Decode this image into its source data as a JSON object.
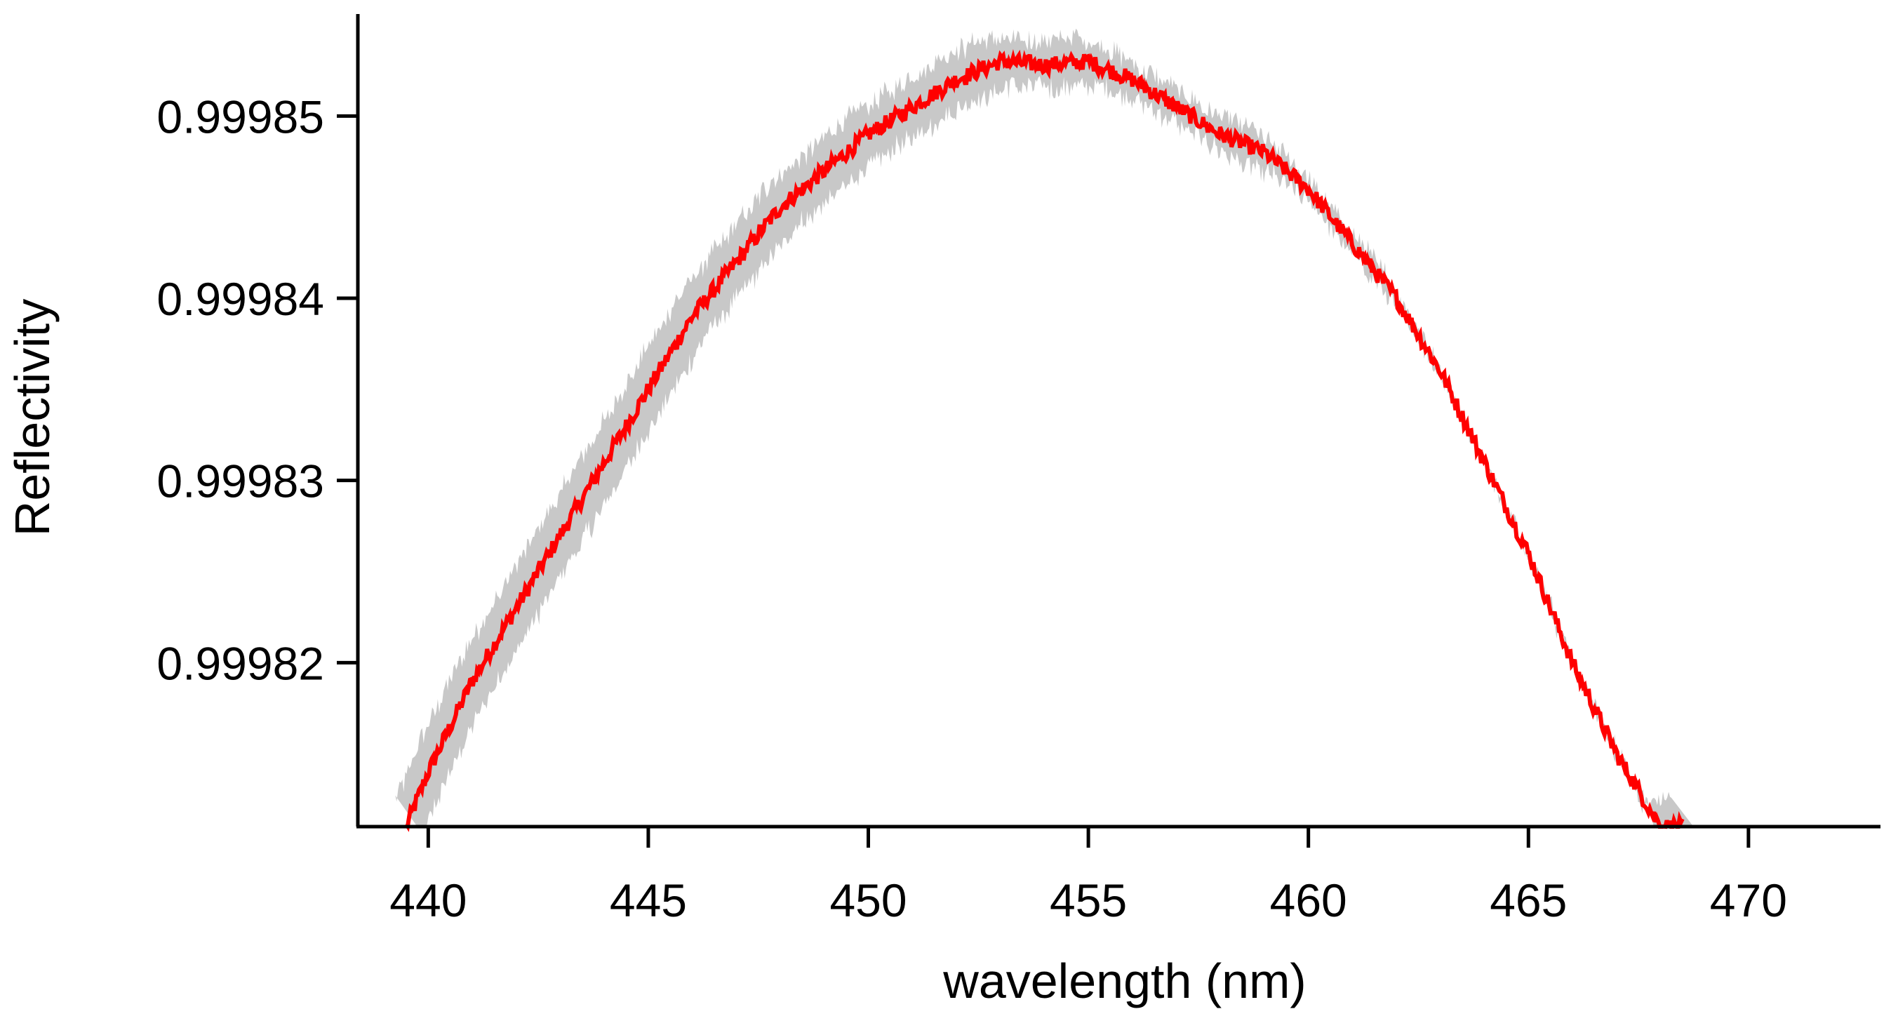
{
  "chart_data": {
    "type": "line",
    "title": "",
    "xlabel": "wavelength (nm)",
    "ylabel": "Reflectivity",
    "xlim": [
      438.4,
      473
    ],
    "ylim": [
      0.999811,
      0.9998556
    ],
    "xticks": [
      440,
      445,
      450,
      455,
      460,
      465,
      470
    ],
    "xtick_labels": [
      "440",
      "445",
      "450",
      "455",
      "460",
      "465",
      "470"
    ],
    "yticks": [
      0.99982,
      0.99983,
      0.99984,
      0.99985
    ],
    "ytick_labels": [
      "0.99982",
      "0.99983",
      "0.99984",
      "0.99985"
    ],
    "grid": false,
    "legend": "none",
    "series": [
      {
        "name": "Reflectivity",
        "color": "#ff0000",
        "x": [
          439.5,
          440,
          441,
          442,
          443,
          444,
          445,
          446,
          447,
          448,
          449,
          450,
          451,
          452,
          453,
          454,
          455,
          456,
          457,
          458,
          459,
          460,
          461,
          462,
          463,
          464,
          465,
          466,
          467,
          468,
          468.5
        ],
        "y": [
          0.999811,
          0.999814,
          0.999819,
          0.999823,
          0.999827,
          0.999831,
          0.999835,
          0.999839,
          0.999842,
          0.999845,
          0.999847,
          0.999849,
          0.9998505,
          0.999852,
          0.999853,
          0.9998528,
          0.999853,
          0.999852,
          0.9998505,
          0.999849,
          0.999848,
          0.999846,
          0.999843,
          0.99984,
          0.999836,
          0.999831,
          0.999826,
          0.99982,
          0.999815,
          0.999811,
          0.999811
        ]
      }
    ],
    "uncertainty_band": {
      "color": "#c8c8c8",
      "half_width": 1.3e-06
    }
  }
}
